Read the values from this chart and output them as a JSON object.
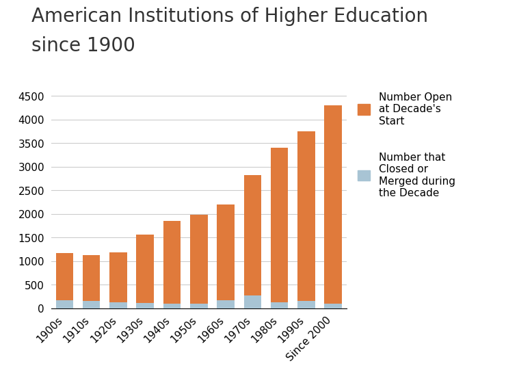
{
  "categories": [
    "1900s",
    "1910s",
    "1920s",
    "1930s",
    "1940s",
    "1950s",
    "1960s",
    "1970s",
    "1980s",
    "1990s",
    "Since 2000"
  ],
  "open_at_start": [
    1000,
    975,
    1060,
    1450,
    1750,
    1880,
    2020,
    2550,
    3275,
    3600,
    4200
  ],
  "closed_merged": [
    165,
    155,
    130,
    105,
    95,
    100,
    175,
    270,
    130,
    150,
    100
  ],
  "orange_color": "#E07A3B",
  "blue_color": "#A8C4D4",
  "title_line1": "American Institutions of Higher Education",
  "title_line2": "since 1900",
  "legend_open": "Number Open\nat Decade's\nStart",
  "legend_closed": "Number that\nClosed or\nMerged during\nthe Decade",
  "ylim": [
    0,
    4700
  ],
  "yticks": [
    0,
    500,
    1000,
    1500,
    2000,
    2500,
    3000,
    3500,
    4000,
    4500
  ],
  "bg_color": "#FFFFFF",
  "header_bar_color": "#A8BFC9",
  "title_fontsize": 20,
  "tick_fontsize": 11,
  "legend_fontsize": 11
}
